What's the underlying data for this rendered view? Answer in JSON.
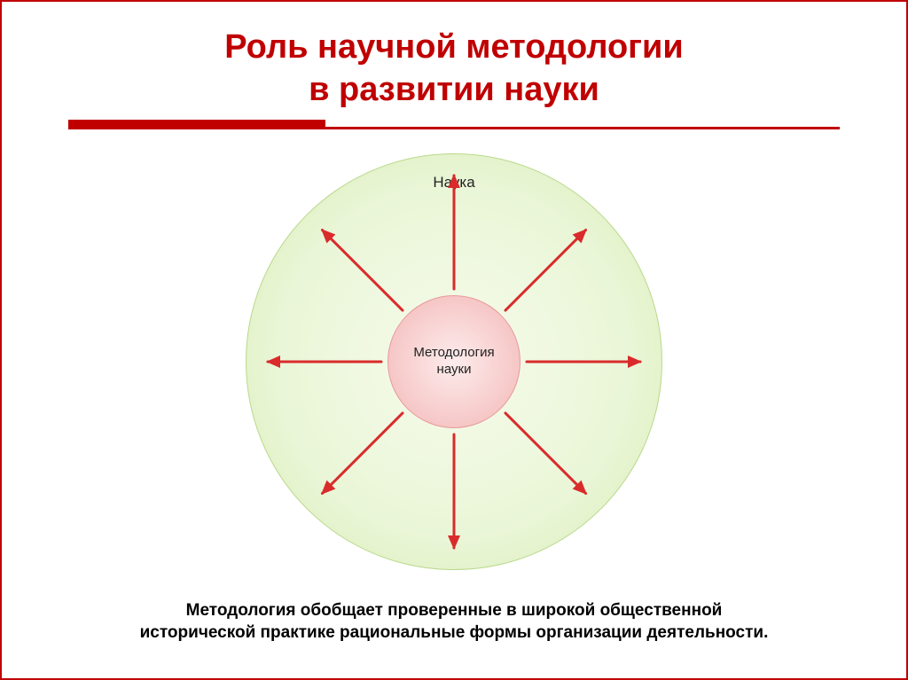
{
  "title": {
    "line1": "Роль научной методологии",
    "line2": "в развитии науки",
    "color": "#c00000",
    "fontsize": 38
  },
  "rule": {
    "color": "#c00000",
    "thick_width": 290,
    "thin_width": 870
  },
  "diagram": {
    "type": "radial-arrows",
    "outer": {
      "label": "Наука",
      "diameter": 470,
      "fill_start": "#f6fbec",
      "fill_mid": "#eaf6d7",
      "fill_end": "#d5eab0",
      "border": "#b9d98a",
      "label_fontsize": 17
    },
    "inner": {
      "label": "Методология науки",
      "diameter": 150,
      "fill_start": "#fdecec",
      "fill_mid": "#f8cfcf",
      "fill_end": "#f2b5b5",
      "border": "#e89a9a",
      "label_fontsize": 15
    },
    "arrows": {
      "count": 8,
      "color": "#d92b2b",
      "stroke_width": 3,
      "angles_deg": [
        0,
        45,
        90,
        135,
        180,
        225,
        270,
        315
      ],
      "inner_radius": 82,
      "outer_radius": 210,
      "head_len": 14,
      "head_half": 7
    }
  },
  "caption": {
    "line1": "Методология обобщает проверенные в широкой общественной",
    "line2": "исторической практике рациональные формы организации деятельности.",
    "fontsize": 19,
    "color": "#000000"
  },
  "frame_color": "#c00000",
  "background": "#ffffff"
}
